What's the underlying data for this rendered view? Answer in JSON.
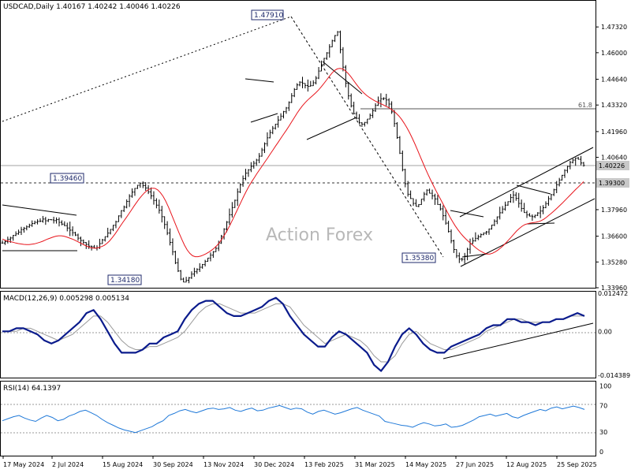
{
  "watermark": "Action Forex",
  "colors": {
    "candle": "#000000",
    "ma": "#e8141b",
    "macd": "#0a1b8c",
    "signal": "#9a9a9a",
    "rsi": "#1e78d8",
    "level_line": "#555555"
  },
  "chart_data": [
    {
      "type": "candlestick",
      "title": "USDCAD,Daily  1.40167 1.40242 1.40046 1.40226",
      "ylim": [
        1.3396,
        1.487
      ],
      "y_ticks": [
        "1.47320",
        "1.46000",
        "1.44640",
        "1.43320",
        "1.41960",
        "1.40640",
        "1.37960",
        "1.36600",
        "1.35280",
        "1.33960"
      ],
      "x_ticks": [
        "17 May 2024",
        "2 Jul 2024",
        "15 Aug 2024",
        "30 Sep 2024",
        "13 Nov 2024",
        "30 Dec 2024",
        "13 Feb 2025",
        "31 Mar 2025",
        "14 May 2025",
        "27 Jun 2025",
        "12 Aug 2025",
        "25 Sep 2025"
      ],
      "series": [
        {
          "name": "USDCAD price",
          "values": [
            1.3625,
            1.3632,
            1.3644,
            1.3651,
            1.3664,
            1.3672,
            1.3681,
            1.3694,
            1.37,
            1.3708,
            1.3716,
            1.3725,
            1.3731,
            1.3736,
            1.3737,
            1.3748,
            1.3739,
            1.3745,
            1.3744,
            1.374,
            1.3745,
            1.3731,
            1.3722,
            1.3714,
            1.3702,
            1.3691,
            1.3678,
            1.3666,
            1.365,
            1.3638,
            1.3628,
            1.3618,
            1.3609,
            1.3606,
            1.3599,
            1.3601,
            1.3622,
            1.3641,
            1.3658,
            1.3676,
            1.3695,
            1.3716,
            1.3734,
            1.3764,
            1.3791,
            1.3809,
            1.3838,
            1.3865,
            1.3886,
            1.3905,
            1.3921,
            1.3932,
            1.3919,
            1.3907,
            1.3887,
            1.3867,
            1.3843,
            1.3819,
            1.3793,
            1.376,
            1.372,
            1.3676,
            1.3628,
            1.358,
            1.3524,
            1.3482,
            1.344,
            1.3425,
            1.3434,
            1.3447,
            1.3466,
            1.3478,
            1.349,
            1.3501,
            1.3515,
            1.3531,
            1.3548,
            1.3563,
            1.358,
            1.3598,
            1.3625,
            1.3659,
            1.3696,
            1.3732,
            1.377,
            1.3807,
            1.3844,
            1.3887,
            1.3924,
            1.3955,
            1.3983,
            1.4,
            1.4018,
            1.4034,
            1.405,
            1.407,
            1.4102,
            1.4134,
            1.4164,
            1.4191,
            1.4213,
            1.4234,
            1.4255,
            1.4275,
            1.4298,
            1.4317,
            1.4345,
            1.4379,
            1.4412,
            1.4435,
            1.4449,
            1.4443,
            1.4432,
            1.4428,
            1.4431,
            1.4446,
            1.447,
            1.4506,
            1.4539,
            1.4571,
            1.4599,
            1.463,
            1.4661,
            1.4688,
            1.4706,
            1.4616,
            1.4526,
            1.4444,
            1.4379,
            1.4328,
            1.4288,
            1.4264,
            1.4241,
            1.4234,
            1.4243,
            1.426,
            1.4279,
            1.4303,
            1.433,
            1.4353,
            1.4364,
            1.4366,
            1.4358,
            1.4337,
            1.4297,
            1.4237,
            1.4165,
            1.4085,
            1.4001,
            1.3929,
            1.3875,
            1.3853,
            1.3828,
            1.3813,
            1.3822,
            1.385,
            1.3876,
            1.3896,
            1.388,
            1.3867,
            1.3851,
            1.3822,
            1.38,
            1.3765,
            1.3727,
            1.3684,
            1.3636,
            1.3592,
            1.3559,
            1.3543,
            1.3542,
            1.3558,
            1.3593,
            1.3622,
            1.3636,
            1.3649,
            1.3657,
            1.3668,
            1.3676,
            1.3682,
            1.3697,
            1.3717,
            1.3737,
            1.3759,
            1.378,
            1.3799,
            1.3819,
            1.3837,
            1.3858,
            1.3871,
            1.3854,
            1.3828,
            1.3802,
            1.3781,
            1.3769,
            1.3763,
            1.376,
            1.3767,
            1.3779,
            1.3789,
            1.3806,
            1.3827,
            1.3852,
            1.3873,
            1.3898,
            1.3924,
            1.3948,
            1.3972,
            1.3997,
            1.4017,
            1.4038,
            1.405,
            1.406,
            1.4054,
            1.4035,
            1.4023
          ]
        },
        {
          "name": "MA",
          "values": [
            1.3645,
            1.364,
            1.3636,
            1.3632,
            1.3629,
            1.3625,
            1.3622,
            1.362,
            1.3618,
            1.3617,
            1.3617,
            1.3619,
            1.3621,
            1.3625,
            1.3629,
            1.3634,
            1.364,
            1.3646,
            1.3651,
            1.3656,
            1.366,
            1.3662,
            1.3662,
            1.366,
            1.3656,
            1.3651,
            1.3646,
            1.364,
            1.3633,
            1.3626,
            1.3619,
            1.3612,
            1.3606,
            1.3601,
            1.3599,
            1.3599,
            1.3602,
            1.3607,
            1.3613,
            1.3623,
            1.3636,
            1.3652,
            1.367,
            1.369,
            1.3711,
            1.3731,
            1.375,
            1.377,
            1.379,
            1.3811,
            1.3831,
            1.385,
            1.3867,
            1.3882,
            1.3894,
            1.3902,
            1.3906,
            1.3905,
            1.3897,
            1.3883,
            1.3864,
            1.3839,
            1.3809,
            1.3776,
            1.3742,
            1.3708,
            1.3675,
            1.3643,
            1.3614,
            1.359,
            1.3572,
            1.356,
            1.3555,
            1.3555,
            1.3558,
            1.3563,
            1.357,
            1.3578,
            1.3587,
            1.3598,
            1.3611,
            1.3627,
            1.3646,
            1.3668,
            1.3692,
            1.3718,
            1.3746,
            1.3775,
            1.3804,
            1.3833,
            1.3862,
            1.3889,
            1.3915,
            1.3938,
            1.3959,
            1.398,
            1.4,
            1.402,
            1.404,
            1.406,
            1.4081,
            1.4101,
            1.4122,
            1.4142,
            1.4163,
            1.4183,
            1.4203,
            1.4224,
            1.4246,
            1.4268,
            1.429,
            1.431,
            1.4328,
            1.4344,
            1.4358,
            1.437,
            1.4382,
            1.4395,
            1.4409,
            1.4425,
            1.4442,
            1.446,
            1.4478,
            1.4495,
            1.4509,
            1.4517,
            1.452,
            1.4517,
            1.4508,
            1.4495,
            1.4479,
            1.446,
            1.4441,
            1.4423,
            1.4407,
            1.4393,
            1.4381,
            1.4371,
            1.4362,
            1.4354,
            1.4347,
            1.434,
            1.4334,
            1.4327,
            1.432,
            1.4312,
            1.4302,
            1.429,
            1.4276,
            1.4259,
            1.4239,
            1.4216,
            1.4191,
            1.4163,
            1.4133,
            1.4101,
            1.4068,
            1.4036,
            1.4004,
            1.3974,
            1.3945,
            1.3917,
            1.389,
            1.3864,
            1.3838,
            1.3812,
            1.3786,
            1.376,
            1.3736,
            1.3714,
            1.3694,
            1.3676,
            1.366,
            1.3646,
            1.3633,
            1.3621,
            1.3609,
            1.3598,
            1.3588,
            1.358,
            1.3573,
            1.3569,
            1.3569,
            1.3573,
            1.358,
            1.3589,
            1.36,
            1.3612,
            1.3626,
            1.3641,
            1.3656,
            1.3672,
            1.3687,
            1.37,
            1.3711,
            1.3719,
            1.3724,
            1.3727,
            1.3729,
            1.3731,
            1.3734,
            1.3739,
            1.3746,
            1.3756,
            1.3767,
            1.3778,
            1.379,
            1.3803,
            1.3816,
            1.3829,
            1.3843,
            1.3857,
            1.3871,
            1.3885,
            1.3899,
            1.3912,
            1.3926,
            1.394
          ]
        }
      ],
      "annotations": {
        "level_labels": [
          "1.39460",
          "1.47910",
          "1.34180",
          "1.35380"
        ],
        "fib_label": "61.8",
        "current_price": "1.40226",
        "support_price": "1.39300"
      }
    },
    {
      "type": "line",
      "title": "MACD(12,26,9) 0.005298 0.005134",
      "ylim": [
        -0.014389,
        0.012472
      ],
      "y_ticks": [
        "0.012472",
        "0.00",
        "-0.014389"
      ],
      "series": [
        {
          "name": "MACD",
          "values": [
            0.0,
            0.0,
            0.001,
            0.001,
            0.0,
            -0.001,
            -0.003,
            -0.004,
            -0.003,
            -0.001,
            0.001,
            0.003,
            0.006,
            0.007,
            0.004,
            0.0,
            -0.004,
            -0.007,
            -0.007,
            -0.007,
            -0.006,
            -0.004,
            -0.004,
            -0.002,
            -0.001,
            0.0,
            0.004,
            0.007,
            0.009,
            0.01,
            0.01,
            0.008,
            0.006,
            0.005,
            0.005,
            0.006,
            0.007,
            0.008,
            0.01,
            0.011,
            0.009,
            0.005,
            0.002,
            -0.001,
            -0.003,
            -0.005,
            -0.005,
            -0.002,
            0.0,
            -0.001,
            -0.003,
            -0.005,
            -0.007,
            -0.011,
            -0.013,
            -0.01,
            -0.005,
            -0.001,
            0.001,
            -0.001,
            -0.004,
            -0.006,
            -0.007,
            -0.007,
            -0.005,
            -0.004,
            -0.003,
            -0.002,
            -0.001,
            0.001,
            0.002,
            0.002,
            0.004,
            0.004,
            0.003,
            0.003,
            0.002,
            0.003,
            0.003,
            0.004,
            0.004,
            0.005,
            0.006,
            0.005
          ]
        },
        {
          "name": "Signal",
          "values": [
            0.0,
            0.0,
            0.0,
            0.001,
            0.001,
            0.0,
            -0.001,
            -0.002,
            -0.003,
            -0.002,
            -0.001,
            0.001,
            0.003,
            0.005,
            0.005,
            0.003,
            0.0,
            -0.003,
            -0.005,
            -0.006,
            -0.006,
            -0.005,
            -0.005,
            -0.004,
            -0.003,
            -0.002,
            0.0,
            0.003,
            0.006,
            0.008,
            0.009,
            0.009,
            0.008,
            0.007,
            0.006,
            0.006,
            0.006,
            0.007,
            0.008,
            0.009,
            0.009,
            0.008,
            0.005,
            0.002,
            0.0,
            -0.002,
            -0.004,
            -0.003,
            -0.002,
            -0.001,
            -0.002,
            -0.003,
            -0.005,
            -0.008,
            -0.01,
            -0.01,
            -0.008,
            -0.004,
            -0.001,
            0.0,
            -0.002,
            -0.004,
            -0.005,
            -0.006,
            -0.006,
            -0.005,
            -0.004,
            -0.003,
            -0.002,
            0.0,
            0.001,
            0.002,
            0.003,
            0.004,
            0.004,
            0.003,
            0.003,
            0.003,
            0.003,
            0.004,
            0.004,
            0.005,
            0.005,
            0.005
          ]
        }
      ]
    },
    {
      "type": "line",
      "title": "RSI(14) 64.1397",
      "ylim": [
        0,
        100
      ],
      "y_ticks": [
        "100",
        "70",
        "30",
        "0"
      ],
      "series": [
        {
          "name": "RSI",
          "values": [
            47,
            50,
            53,
            55,
            51,
            48,
            46,
            51,
            55,
            52,
            47,
            49,
            54,
            57,
            61,
            63,
            59,
            55,
            49,
            44,
            40,
            36,
            33,
            31,
            29,
            32,
            35,
            38,
            43,
            47,
            55,
            58,
            62,
            64,
            61,
            59,
            62,
            65,
            66,
            64,
            65,
            67,
            63,
            61,
            64,
            66,
            62,
            63,
            66,
            68,
            70,
            67,
            64,
            66,
            65,
            60,
            57,
            61,
            63,
            60,
            57,
            59,
            62,
            65,
            67,
            63,
            60,
            57,
            54,
            46,
            44,
            42,
            40,
            39,
            37,
            41,
            44,
            42,
            39,
            40,
            42,
            37,
            38,
            40,
            44,
            48,
            53,
            55,
            57,
            54,
            56,
            58,
            53,
            51,
            55,
            58,
            61,
            64,
            62,
            66,
            68,
            65,
            67,
            69,
            67,
            64
          ]
        }
      ]
    }
  ]
}
